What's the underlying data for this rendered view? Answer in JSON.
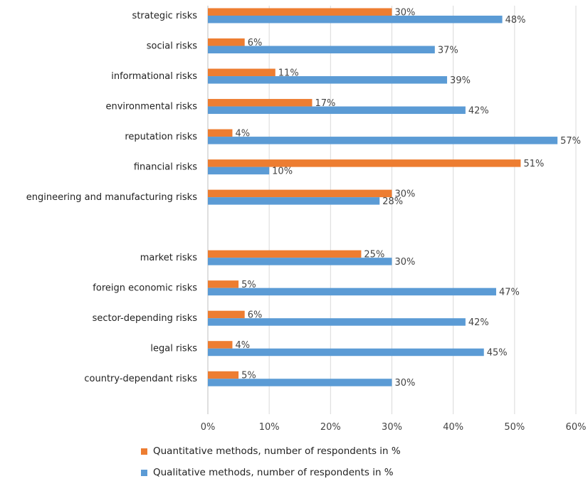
{
  "chart_data": {
    "type": "bar",
    "orientation": "horizontal",
    "categories": [
      "strategic risks",
      "social risks",
      "informational risks",
      "environmental risks",
      "reputation risks",
      "financial risks",
      "engineering and manufacturing risks",
      "",
      "market risks",
      "foreign economic risks",
      "sector-depending risks",
      "legal risks",
      "country-dependant risks"
    ],
    "series": [
      {
        "name": "Quantitative methods, number of respondents in %",
        "color": "#ED7D31",
        "values": [
          30,
          6,
          11,
          17,
          4,
          51,
          30,
          null,
          25,
          5,
          6,
          4,
          5
        ],
        "labels": [
          "30%",
          "6%",
          "11%",
          "17%",
          "4%",
          "51%",
          "30%",
          "",
          "25%",
          "5%",
          "6%",
          "4%",
          "5%"
        ]
      },
      {
        "name": "Qualitative methods, number of respondents in %",
        "color": "#5B9BD5",
        "values": [
          48,
          37,
          39,
          42,
          57,
          10,
          28,
          null,
          30,
          47,
          42,
          45,
          30
        ],
        "labels": [
          "48%",
          "37%",
          "39%",
          "42%",
          "57%",
          "10%",
          "28%",
          "",
          "30%",
          "47%",
          "42%",
          "45%",
          "30%"
        ]
      }
    ],
    "x_ticks": [
      "0%",
      "10%",
      "20%",
      "30%",
      "40%",
      "50%",
      "60%"
    ],
    "xlim": [
      0,
      60
    ],
    "grid": true,
    "legend_position": "bottom",
    "title": "",
    "xlabel": "",
    "ylabel": ""
  }
}
